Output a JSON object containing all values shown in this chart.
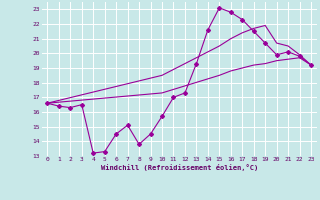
{
  "xlabel": "Windchill (Refroidissement éolien,°C)",
  "bg_color": "#c8e8e8",
  "line_color": "#990099",
  "grid_color": "#ffffff",
  "xlim": [
    -0.5,
    23.5
  ],
  "ylim": [
    13,
    23.5
  ],
  "xticks": [
    0,
    1,
    2,
    3,
    4,
    5,
    6,
    7,
    8,
    9,
    10,
    11,
    12,
    13,
    14,
    15,
    16,
    17,
    18,
    19,
    20,
    21,
    22,
    23
  ],
  "yticks": [
    13,
    14,
    15,
    16,
    17,
    18,
    19,
    20,
    21,
    22,
    23
  ],
  "line1_x": [
    0,
    1,
    2,
    3,
    4,
    5,
    6,
    7,
    8,
    9,
    10,
    11,
    12,
    13,
    14,
    15,
    16,
    17,
    18,
    19,
    20,
    21,
    22,
    23
  ],
  "line1_y": [
    16.6,
    16.4,
    16.3,
    16.5,
    13.2,
    13.3,
    14.5,
    15.1,
    13.8,
    14.5,
    15.7,
    17.0,
    17.3,
    19.3,
    21.6,
    23.1,
    22.8,
    22.3,
    21.5,
    20.7,
    19.9,
    20.1,
    19.8,
    19.2
  ],
  "line2_x": [
    0,
    10,
    15,
    16,
    17,
    18,
    19,
    20,
    21,
    22,
    23
  ],
  "line2_y": [
    16.6,
    18.5,
    20.5,
    21.0,
    21.4,
    21.7,
    21.9,
    20.7,
    20.5,
    19.9,
    19.2
  ],
  "line3_x": [
    0,
    10,
    15,
    16,
    17,
    18,
    19,
    20,
    21,
    22,
    23
  ],
  "line3_y": [
    16.6,
    17.3,
    18.5,
    18.8,
    19.0,
    19.2,
    19.3,
    19.5,
    19.6,
    19.7,
    19.2
  ]
}
